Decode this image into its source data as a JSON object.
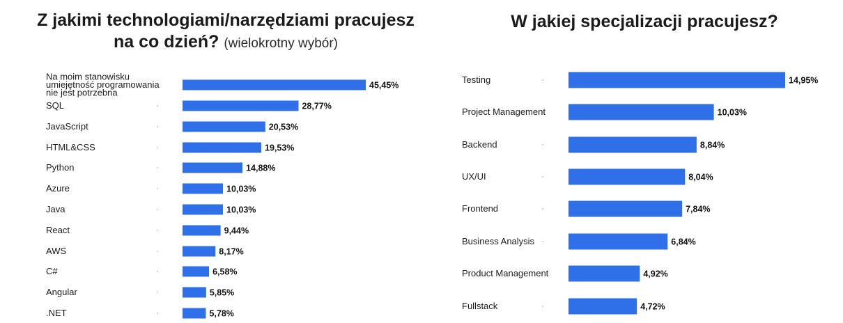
{
  "left": {
    "title_line1": "Z jakimi technologiami/narzędziami pracujesz",
    "title_line2_main": "na co dzień?",
    "title_line2_sub": "(wielokrotny wybór)"
  },
  "right": {
    "title": "W jakiej specjalizacji pracujesz?"
  },
  "colors": {
    "bar": "#2f6fe8",
    "text": "#1b1b1b"
  },
  "chart_data": [
    {
      "type": "bar",
      "orientation": "horizontal",
      "title": "Z jakimi technologiami/narzędziami pracujesz na co dzień? (wielokrotny wybór)",
      "categories": [
        [
          "Na moim stanowisku",
          "umiejętność programowania",
          "nie jest potrzebna"
        ],
        [
          "SQL"
        ],
        [
          "JavaScript"
        ],
        [
          "HTML&CSS"
        ],
        [
          "Python"
        ],
        [
          "Azure"
        ],
        [
          "Java"
        ],
        [
          "React"
        ],
        [
          "AWS"
        ],
        [
          "C#"
        ],
        [
          "Angular"
        ],
        [
          ".NET"
        ]
      ],
      "values": [
        45.45,
        28.77,
        20.53,
        19.53,
        14.88,
        10.03,
        10.03,
        9.44,
        8.17,
        6.58,
        5.85,
        5.78
      ],
      "value_labels": [
        "45,45%",
        "28,77%",
        "20,53%",
        "19,53%",
        "14,88%",
        "10,03%",
        "10,03%",
        "9,44%",
        "8,17%",
        "6,58%",
        "5,85%",
        "5,78%"
      ],
      "unit": "%"
    },
    {
      "type": "bar",
      "orientation": "horizontal",
      "title": "W jakiej specjalizacji pracujesz?",
      "categories": [
        [
          "Testing"
        ],
        [
          "Project Management"
        ],
        [
          "Backend"
        ],
        [
          "UX/UI"
        ],
        [
          "Frontend"
        ],
        [
          "Business Analysis"
        ],
        [
          "Product Management"
        ],
        [
          "Fullstack"
        ]
      ],
      "values": [
        14.95,
        10.03,
        8.84,
        8.04,
        7.84,
        6.84,
        4.92,
        4.72
      ],
      "value_labels": [
        "14,95%",
        "10,03%",
        "8,84%",
        "8,04%",
        "7,84%",
        "6,84%",
        "4,92%",
        "4,72%"
      ],
      "unit": "%"
    }
  ]
}
